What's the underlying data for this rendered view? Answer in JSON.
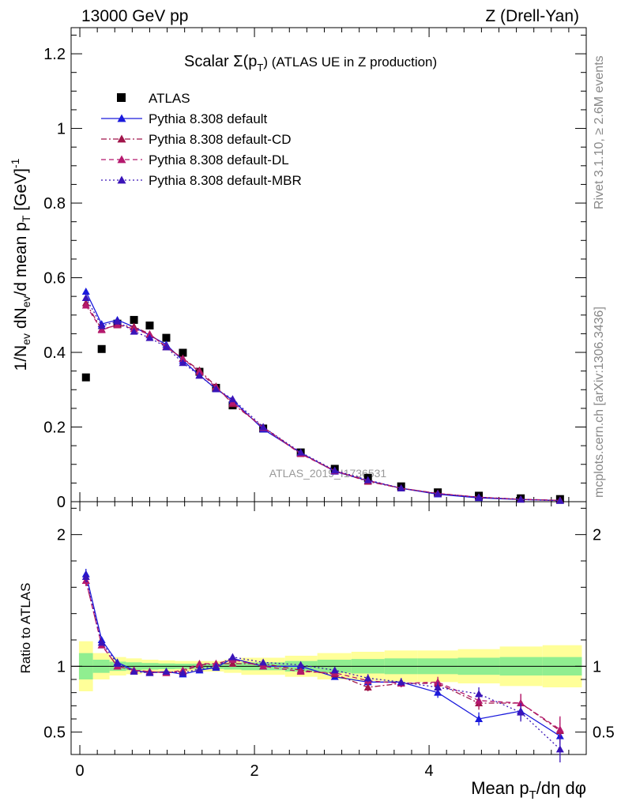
{
  "header": {
    "left": "13000 GeV pp",
    "right": "Z (Drell-Yan)"
  },
  "side_labels": {
    "rivet": "Rivet 3.1.10, ≥ 2.6M events",
    "mcplots": "mcplots.cern.ch [arXiv:1306.3436]"
  },
  "watermark": "ATLAS_2019_I1736531",
  "chart_data": [
    {
      "type": "scatter",
      "panel": "main",
      "title": "Scalar Σ(p_T) (ATLAS UE in Z production)",
      "title_main": "Scalar Σ(p",
      "title_sub": "T",
      "title_rest": ") (ATLAS UE in Z production)",
      "ylabel": "1/N_ev dN_ev/d mean p_T [GeV]^-1",
      "ylim": [
        0,
        1.27
      ],
      "y_ticks": [
        0,
        0.2,
        0.4,
        0.6,
        0.8,
        1,
        1.2
      ],
      "y_tick_labels": [
        "0",
        "0.2",
        "0.4",
        "0.6",
        "0.8",
        "1",
        "1.2"
      ],
      "legend": {
        "placement": "top-left"
      },
      "series": [
        {
          "name": "ATLAS",
          "color": "#000000",
          "style": "square",
          "x": [
            0.07,
            0.25,
            0.43,
            0.62,
            0.8,
            0.99,
            1.18,
            1.37,
            1.56,
            1.75,
            2.1,
            2.53,
            2.92,
            3.3,
            3.68,
            4.1,
            4.57,
            5.05,
            5.5
          ],
          "y": [
            0.333,
            0.409,
            0.477,
            0.487,
            0.472,
            0.439,
            0.399,
            0.348,
            0.305,
            0.258,
            0.196,
            0.132,
            0.088,
            0.064,
            0.041,
            0.025,
            0.016,
            0.009,
            0.007
          ]
        },
        {
          "name": "Pythia 8.308 default",
          "color": "#1a1adc",
          "style": "solid",
          "x": [
            0.07,
            0.25,
            0.43,
            0.62,
            0.8,
            0.99,
            1.18,
            1.37,
            1.56,
            1.75,
            2.1,
            2.53,
            2.92,
            3.3,
            3.68,
            4.1,
            4.57,
            5.05,
            5.5
          ],
          "y": [
            0.563,
            0.476,
            0.487,
            0.468,
            0.446,
            0.421,
            0.378,
            0.339,
            0.302,
            0.272,
            0.194,
            0.131,
            0.081,
            0.056,
            0.036,
            0.02,
            0.01,
            0.006,
            0.003
          ]
        },
        {
          "name": "Pythia 8.308 default-CD",
          "color": "#a0154a",
          "style": "dashdot",
          "x": [
            0.07,
            0.25,
            0.43,
            0.62,
            0.8,
            0.99,
            1.18,
            1.37,
            1.56,
            1.75,
            2.1,
            2.53,
            2.92,
            3.3,
            3.68,
            4.1,
            4.57,
            5.05,
            5.5
          ],
          "y": [
            0.532,
            0.462,
            0.473,
            0.469,
            0.449,
            0.414,
            0.384,
            0.352,
            0.309,
            0.262,
            0.2,
            0.129,
            0.083,
            0.054,
            0.036,
            0.022,
            0.012,
            0.006,
            0.0035
          ]
        },
        {
          "name": "Pythia 8.308 default-DL",
          "color": "#b5186e",
          "style": "dashed",
          "x": [
            0.07,
            0.25,
            0.43,
            0.62,
            0.8,
            0.99,
            1.18,
            1.37,
            1.56,
            1.75,
            2.1,
            2.53,
            2.92,
            3.3,
            3.68,
            4.1,
            4.57,
            5.05,
            5.5
          ],
          "y": [
            0.526,
            0.46,
            0.474,
            0.463,
            0.448,
            0.416,
            0.383,
            0.348,
            0.306,
            0.266,
            0.198,
            0.128,
            0.082,
            0.057,
            0.036,
            0.022,
            0.012,
            0.0066,
            0.0036
          ]
        },
        {
          "name": "Pythia 8.308 default-MBR",
          "color": "#3a14b8",
          "style": "dotted",
          "x": [
            0.07,
            0.25,
            0.43,
            0.62,
            0.8,
            0.99,
            1.18,
            1.37,
            1.56,
            1.75,
            2.1,
            2.53,
            2.92,
            3.3,
            3.68,
            4.1,
            4.57,
            5.05,
            5.5
          ],
          "y": [
            0.546,
            0.471,
            0.483,
            0.456,
            0.439,
            0.414,
            0.372,
            0.338,
            0.302,
            0.275,
            0.2,
            0.132,
            0.084,
            0.058,
            0.036,
            0.021,
            0.012,
            0.006,
            0.0026
          ]
        }
      ]
    },
    {
      "type": "scatter",
      "panel": "ratio",
      "ylabel": "Ratio to ATLAS",
      "xlabel": "Mean p_T/dη dφ",
      "xlim": [
        -0.1,
        5.8
      ],
      "x_ticks": [
        0,
        2,
        4
      ],
      "x_tick_labels": [
        "0",
        "2",
        "4"
      ],
      "ylim": [
        0.33,
        2.25
      ],
      "y_ticks": [
        0.5,
        1,
        2
      ],
      "y_tick_labels": [
        "0.5",
        "1",
        "2"
      ],
      "bands": {
        "x_edges": [
          -0.01,
          0.15,
          0.34,
          0.53,
          0.71,
          0.9,
          1.09,
          1.28,
          1.46,
          1.65,
          1.85,
          2.35,
          2.72,
          3.11,
          3.49,
          3.87,
          4.33,
          4.81,
          5.3,
          5.75
        ],
        "green_half": [
          0.1,
          0.05,
          0.035,
          0.03,
          0.025,
          0.022,
          0.02,
          0.02,
          0.02,
          0.025,
          0.03,
          0.04,
          0.05,
          0.055,
          0.06,
          0.06,
          0.065,
          0.07,
          0.07
        ],
        "yellow_half": [
          0.19,
          0.1,
          0.07,
          0.06,
          0.05,
          0.045,
          0.04,
          0.04,
          0.04,
          0.05,
          0.065,
          0.08,
          0.1,
          0.11,
          0.12,
          0.12,
          0.13,
          0.15,
          0.16
        ],
        "green_color": "#90ee90",
        "yellow_color": "#ffff99"
      },
      "series": [
        {
          "name": "Pythia 8.308 default",
          "x": [
            0.07,
            0.25,
            0.43,
            0.62,
            0.8,
            0.99,
            1.18,
            1.37,
            1.56,
            1.75,
            2.1,
            2.53,
            2.92,
            3.3,
            3.68,
            4.1,
            4.57,
            5.05,
            5.5
          ],
          "y": [
            1.7,
            1.2,
            1.03,
            0.97,
            0.95,
            0.96,
            0.94,
            0.97,
            0.99,
            1.06,
            1.0,
            1.0,
            0.92,
            0.88,
            0.88,
            0.8,
            0.6,
            0.66,
            0.47
          ],
          "err": [
            0.04,
            0.02,
            0.02,
            0.02,
            0.02,
            0.02,
            0.02,
            0.02,
            0.02,
            0.02,
            0.02,
            0.02,
            0.02,
            0.03,
            0.03,
            0.04,
            0.05,
            0.07,
            0.1
          ]
        },
        {
          "name": "Pythia 8.308 default-CD",
          "x": [
            0.07,
            0.25,
            0.43,
            0.62,
            0.8,
            0.99,
            1.18,
            1.37,
            1.56,
            1.75,
            2.1,
            2.53,
            2.92,
            3.3,
            3.68,
            4.1,
            4.57,
            5.05,
            5.5
          ],
          "y": [
            1.65,
            1.16,
            1.0,
            0.97,
            0.96,
            0.95,
            0.96,
            1.01,
            1.02,
            1.02,
            1.02,
            0.97,
            0.94,
            0.84,
            0.87,
            0.87,
            0.72,
            0.72,
            0.51
          ],
          "err": [
            0.04,
            0.02,
            0.02,
            0.02,
            0.02,
            0.02,
            0.02,
            0.02,
            0.02,
            0.02,
            0.02,
            0.02,
            0.02,
            0.03,
            0.03,
            0.04,
            0.05,
            0.07,
            0.1
          ]
        },
        {
          "name": "Pythia 8.308 default-DL",
          "x": [
            0.07,
            0.25,
            0.43,
            0.62,
            0.8,
            0.99,
            1.18,
            1.37,
            1.56,
            1.75,
            2.1,
            2.53,
            2.92,
            3.3,
            3.68,
            4.1,
            4.57,
            5.05,
            5.5
          ],
          "y": [
            1.65,
            1.16,
            1.0,
            0.97,
            0.96,
            0.95,
            0.97,
            1.02,
            1.02,
            1.05,
            1.0,
            0.96,
            0.95,
            0.89,
            0.87,
            0.88,
            0.74,
            0.72,
            0.52
          ],
          "err": [
            0.04,
            0.02,
            0.02,
            0.02,
            0.02,
            0.02,
            0.02,
            0.02,
            0.02,
            0.02,
            0.02,
            0.02,
            0.02,
            0.03,
            0.03,
            0.04,
            0.05,
            0.07,
            0.1
          ]
        },
        {
          "name": "Pythia 8.308 default-MBR",
          "x": [
            0.07,
            0.25,
            0.43,
            0.62,
            0.8,
            0.99,
            1.18,
            1.37,
            1.56,
            1.75,
            2.1,
            2.53,
            2.92,
            3.3,
            3.68,
            4.1,
            4.57,
            5.05,
            5.5
          ],
          "y": [
            1.68,
            1.18,
            1.02,
            0.96,
            0.95,
            0.96,
            0.95,
            0.98,
            1.0,
            1.07,
            1.03,
            1.01,
            0.97,
            0.91,
            0.88,
            0.84,
            0.79,
            0.65,
            0.37
          ],
          "err": [
            0.04,
            0.02,
            0.02,
            0.02,
            0.02,
            0.02,
            0.02,
            0.02,
            0.02,
            0.02,
            0.02,
            0.02,
            0.02,
            0.03,
            0.03,
            0.04,
            0.05,
            0.07,
            0.1
          ]
        }
      ]
    }
  ]
}
